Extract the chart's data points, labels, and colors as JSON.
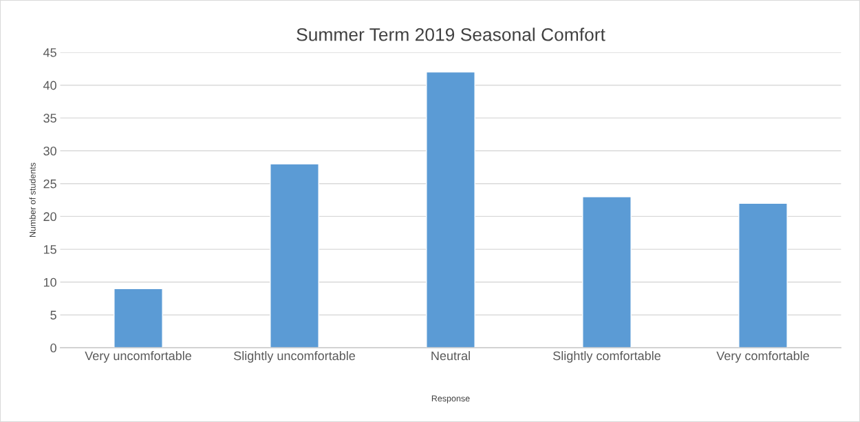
{
  "chart_data": {
    "type": "bar",
    "title": "Summer Term 2019 Seasonal Comfort",
    "xlabel": "Response",
    "ylabel": "Number of students",
    "categories": [
      "Very uncomfortable",
      "Slightly uncomfortable",
      "Neutral",
      "Slightly comfortable",
      "Very comfortable"
    ],
    "values": [
      9,
      28,
      42,
      23,
      22
    ],
    "color": "#5b9bd5",
    "ylim": [
      0,
      45
    ],
    "yticks": [
      0,
      5,
      10,
      15,
      20,
      25,
      30,
      35,
      40,
      45
    ],
    "grid": "y"
  }
}
